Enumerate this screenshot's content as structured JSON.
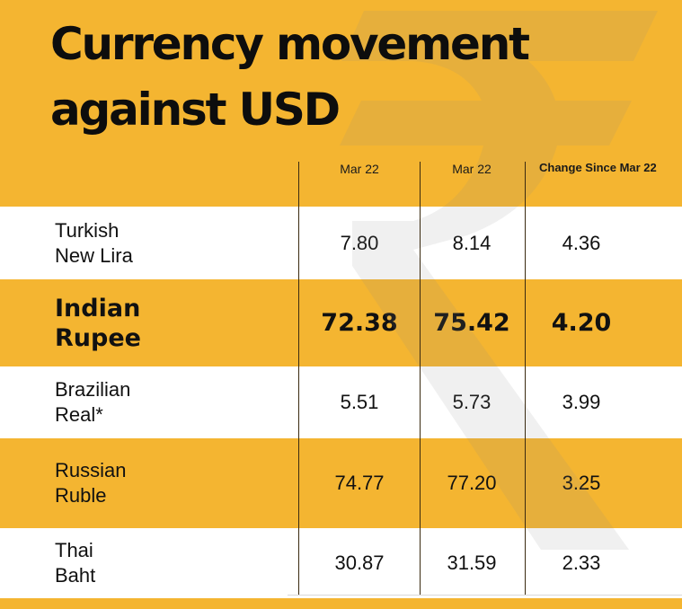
{
  "chart_data": {
    "type": "table",
    "title_lines": [
      "Currency movement",
      "against USD"
    ],
    "columns": [
      "Mar 22",
      "Mar 22",
      "Change Since Mar 22"
    ],
    "rows": [
      {
        "label": "Turkish\nNew Lira",
        "values": [
          "7.80",
          "8.14",
          "4.36"
        ],
        "emphasis": false
      },
      {
        "label": "Indian\nRupee",
        "values": [
          "72.38",
          "75.42",
          "4.20"
        ],
        "emphasis": true
      },
      {
        "label": "Brazilian\nReal*",
        "values": [
          "5.51",
          "5.73",
          "3.99"
        ],
        "emphasis": false
      },
      {
        "label": "Russian\nRuble",
        "values": [
          "74.77",
          "77.20",
          "3.25"
        ],
        "emphasis": false
      },
      {
        "label": "Thai\nBaht",
        "values": [
          "30.87",
          "31.59",
          "2.33"
        ],
        "emphasis": false
      }
    ]
  },
  "watermark": {
    "icon": "rupee-symbol-icon"
  },
  "colors": {
    "background": "#f4b531",
    "row_alt": "#ffffff",
    "text": "#111111",
    "divider": "#3a2a10",
    "watermark": "#8a8a8a"
  }
}
